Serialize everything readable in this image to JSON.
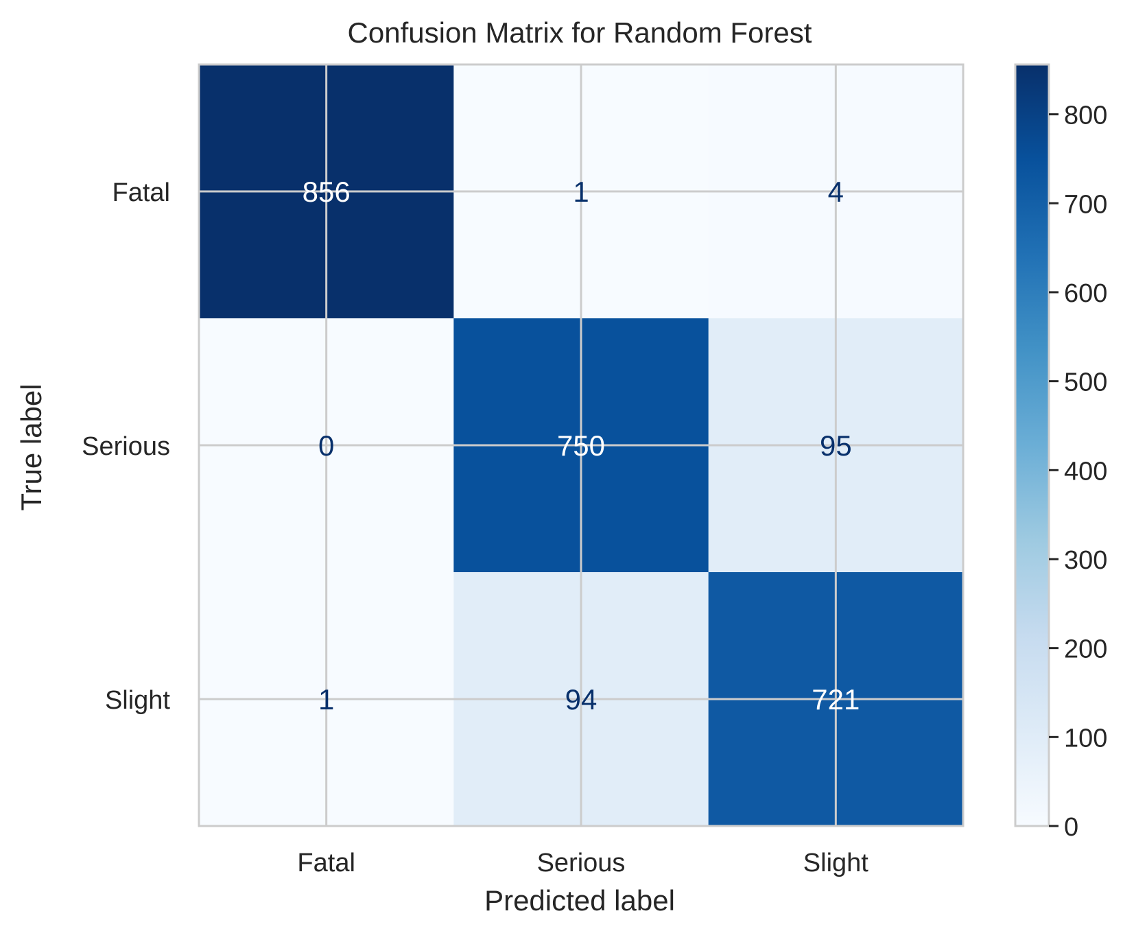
{
  "chart_data": {
    "type": "heatmap",
    "title": "Confusion Matrix for Random Forest",
    "xlabel": "Predicted label",
    "ylabel": "True label",
    "x_categories": [
      "Fatal",
      "Serious",
      "Slight"
    ],
    "y_categories": [
      "Fatal",
      "Serious",
      "Slight"
    ],
    "matrix": [
      [
        856,
        1,
        4
      ],
      [
        0,
        750,
        95
      ],
      [
        1,
        94,
        721
      ]
    ],
    "colormap": "Blues",
    "colormap_stops": [
      "#f7fbff",
      "#deebf7",
      "#c6dbef",
      "#9ecae1",
      "#6baed6",
      "#4292c6",
      "#2171b5",
      "#08519c",
      "#08306b"
    ],
    "value_range": [
      0,
      856
    ],
    "colorbar_ticks": [
      0,
      100,
      200,
      300,
      400,
      500,
      600,
      700,
      800
    ],
    "grid": true,
    "grid_color": "#cccccc",
    "text_dark_color": "#08306b",
    "text_light_color": "#ffffff"
  }
}
